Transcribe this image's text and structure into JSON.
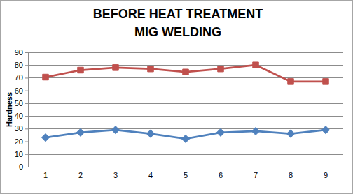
{
  "chart_data": {
    "type": "line",
    "title": [
      "BEFORE HEAT TREATMENT",
      "MIG WELDING"
    ],
    "y_label": "Hardness",
    "categories": [
      "1",
      "2",
      "3",
      "4",
      "5",
      "6",
      "7",
      "8",
      "9"
    ],
    "series": [
      {
        "color": "#4f81bd",
        "marker": "diamond",
        "line_style": "solid",
        "values": [
          23,
          27,
          29,
          26,
          22,
          27,
          28,
          26,
          29
        ]
      },
      {
        "color": "#c0504d",
        "marker": "square",
        "line_style": "solid",
        "values": [
          70.5,
          76,
          78,
          77,
          74.5,
          77,
          80,
          67,
          67
        ]
      }
    ],
    "ylim": [
      0,
      90
    ],
    "yticks": [
      0,
      10,
      20,
      30,
      40,
      50,
      60,
      70,
      80,
      90
    ],
    "grid": true
  }
}
